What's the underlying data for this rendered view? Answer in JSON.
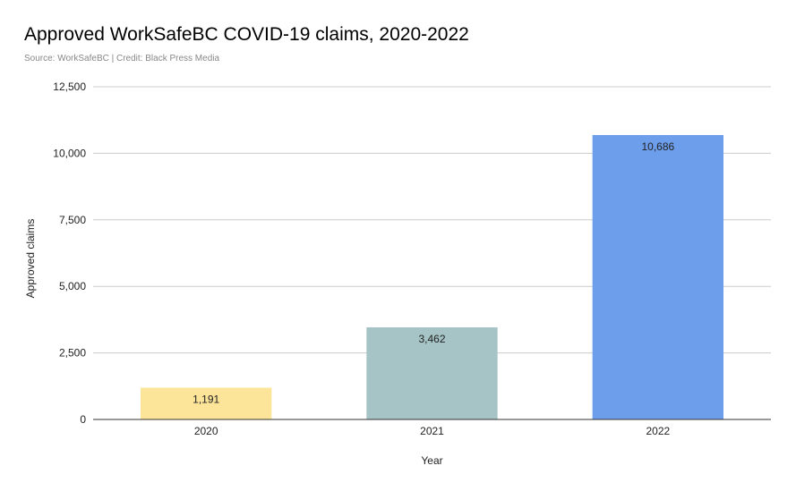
{
  "chart_data": {
    "type": "bar",
    "title": "Approved WorkSafeBC COVID-19 claims, 2020-2022",
    "subtitle": "Source: WorkSafeBC | Credit: Black Press Media",
    "xlabel": "Year",
    "ylabel": "Approved claims",
    "categories": [
      "2020",
      "2021",
      "2022"
    ],
    "values": [
      1191,
      3462,
      10686
    ],
    "value_labels": [
      "1,191",
      "3,462",
      "10,686"
    ],
    "bar_colors": [
      "#fce598",
      "#a6c4c5",
      "#6d9eeb"
    ],
    "ylim": [
      0,
      12500
    ],
    "yticks": [
      0,
      2500,
      5000,
      7500,
      10000,
      12500
    ],
    "ytick_labels": [
      "0",
      "2,500",
      "5,000",
      "7,500",
      "10,000",
      "12,500"
    ],
    "grid": true,
    "legend": "none"
  }
}
